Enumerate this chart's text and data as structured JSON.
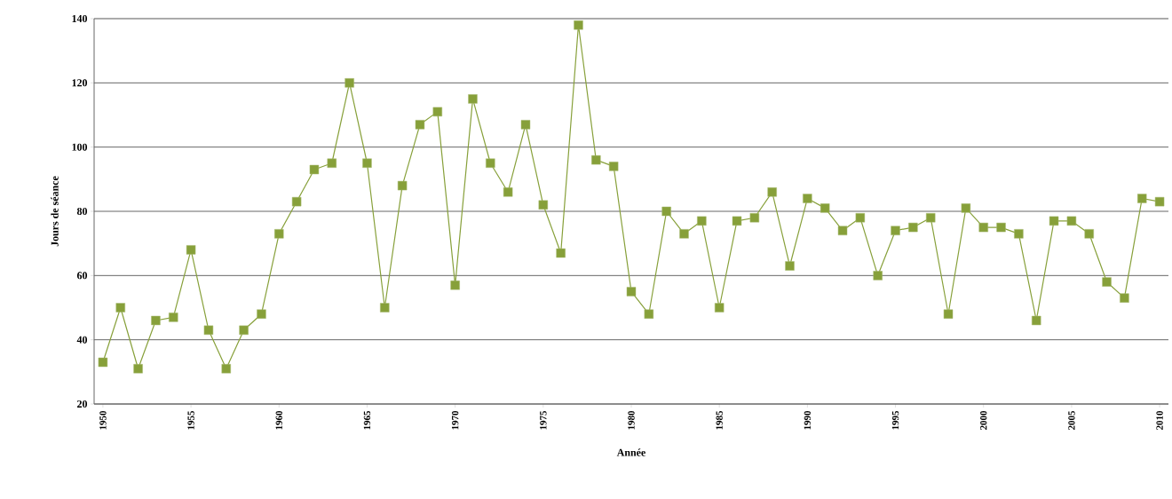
{
  "chart_data": {
    "type": "line",
    "xlabel": "Année",
    "ylabel": "Jours de séance",
    "x": [
      1950,
      1951,
      1952,
      1953,
      1954,
      1955,
      1956,
      1957,
      1958,
      1959,
      1960,
      1961,
      1962,
      1963,
      1964,
      1965,
      1966,
      1967,
      1968,
      1969,
      1970,
      1971,
      1972,
      1973,
      1974,
      1975,
      1976,
      1977,
      1978,
      1979,
      1980,
      1981,
      1982,
      1983,
      1984,
      1985,
      1986,
      1987,
      1988,
      1989,
      1990,
      1991,
      1992,
      1993,
      1994,
      1995,
      1996,
      1997,
      1998,
      1999,
      2000,
      2001,
      2002,
      2003,
      2004,
      2005,
      2006,
      2007,
      2008,
      2009,
      2010
    ],
    "series": [
      {
        "color": "#87a03a",
        "values": [
          33,
          50,
          31,
          46,
          47,
          68,
          43,
          31,
          43,
          48,
          73,
          83,
          93,
          95,
          120,
          95,
          50,
          88,
          107,
          111,
          57,
          115,
          95,
          86,
          107,
          82,
          67,
          138,
          96,
          94,
          55,
          48,
          80,
          73,
          77,
          50,
          77,
          78,
          86,
          63,
          84,
          81,
          74,
          78,
          60,
          74,
          75,
          78,
          48,
          81,
          75,
          75,
          73,
          46,
          77,
          77,
          73,
          58,
          53,
          84,
          83
        ]
      }
    ],
    "xlim": [
      1949.5,
      2010.5
    ],
    "xticks": [
      1950,
      1955,
      1960,
      1965,
      1970,
      1975,
      1980,
      1985,
      1990,
      1995,
      2000,
      2005,
      2010
    ],
    "ylim": [
      20,
      140
    ],
    "yticks": [
      20,
      40,
      60,
      80,
      100,
      120,
      140
    ],
    "grid": "y",
    "marker": "square",
    "line_style": "solid"
  }
}
